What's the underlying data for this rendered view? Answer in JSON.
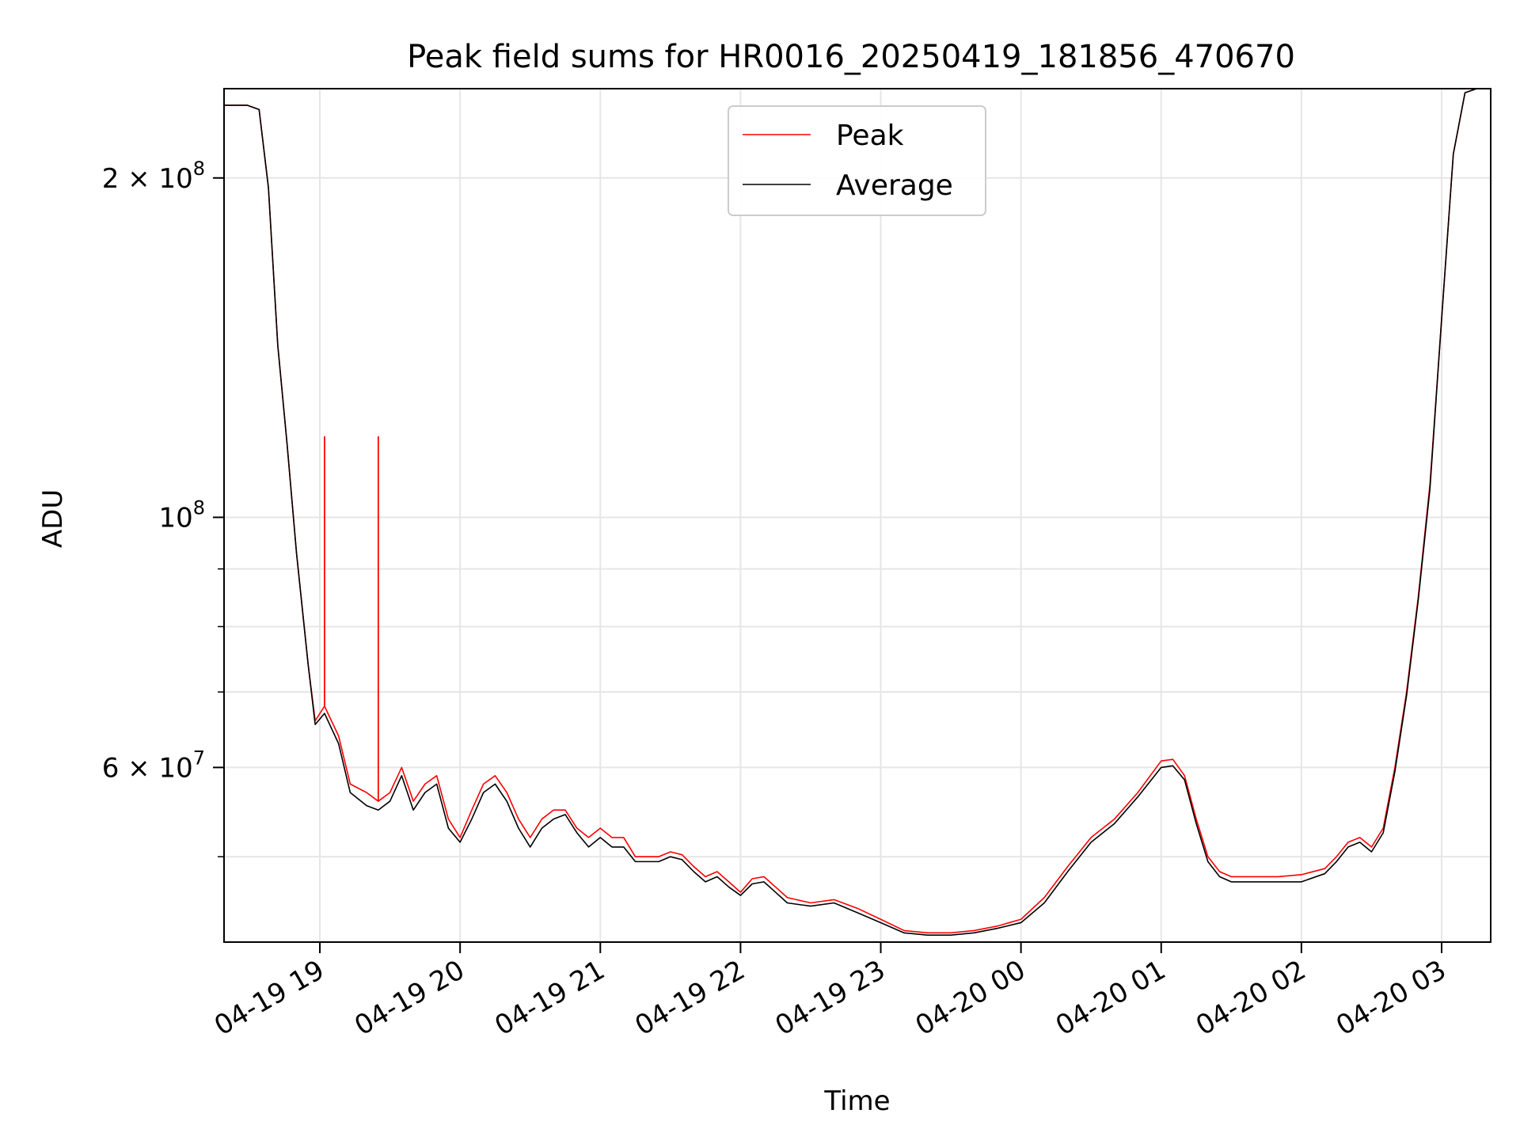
{
  "chart_data": {
    "type": "line",
    "title": "Peak field sums for HR0016_20250419_181856_470670",
    "xlabel": "Time",
    "ylabel": "ADU",
    "yscale": "log",
    "grid": true,
    "legend_placement": "upper-center",
    "xlim": [
      "2025-04-19 18:19",
      "2025-04-20 03:21"
    ],
    "ylim": [
      42000000,
      240000000
    ],
    "x_ticks": [
      {
        "value": "2025-04-19 19:00",
        "label": "04-19 19"
      },
      {
        "value": "2025-04-19 20:00",
        "label": "04-19 20"
      },
      {
        "value": "2025-04-19 21:00",
        "label": "04-19 21"
      },
      {
        "value": "2025-04-19 22:00",
        "label": "04-19 22"
      },
      {
        "value": "2025-04-19 23:00",
        "label": "04-19 23"
      },
      {
        "value": "2025-04-20 00:00",
        "label": "04-20 00"
      },
      {
        "value": "2025-04-20 01:00",
        "label": "04-20 01"
      },
      {
        "value": "2025-04-20 02:00",
        "label": "04-20 02"
      },
      {
        "value": "2025-04-20 03:00",
        "label": "04-20 03"
      }
    ],
    "y_major_ticks": [
      {
        "value": 200000000,
        "mantissa": "2",
        "times": "×",
        "base": "10",
        "exp": "8"
      },
      {
        "value": 100000000,
        "mantissa": "",
        "times": "",
        "base": "10",
        "exp": "8"
      },
      {
        "value": 60000000,
        "mantissa": "6",
        "times": "×",
        "base": "10",
        "exp": "7"
      }
    ],
    "y_minor_ticks": [
      50000000,
      70000000,
      80000000,
      90000000,
      300000000
    ],
    "series": [
      {
        "name": "Peak",
        "color": "#ff0000",
        "x": [
          "2025-04-19 18:19",
          "2025-04-19 18:29",
          "2025-04-19 18:34",
          "2025-04-19 18:38",
          "2025-04-19 18:42",
          "2025-04-19 18:46",
          "2025-04-19 18:50",
          "2025-04-19 18:55",
          "2025-04-19 18:58",
          "2025-04-19 19:02",
          "2025-04-19 19:08",
          "2025-04-19 19:13",
          "2025-04-19 19:20",
          "2025-04-19 19:25",
          "2025-04-19 19:30",
          "2025-04-19 19:35",
          "2025-04-19 19:40",
          "2025-04-19 19:45",
          "2025-04-19 19:50",
          "2025-04-19 19:55",
          "2025-04-19 20:00",
          "2025-04-19 20:05",
          "2025-04-19 20:10",
          "2025-04-19 20:15",
          "2025-04-19 20:20",
          "2025-04-19 20:25",
          "2025-04-19 20:30",
          "2025-04-19 20:35",
          "2025-04-19 20:40",
          "2025-04-19 20:45",
          "2025-04-19 20:50",
          "2025-04-19 20:55",
          "2025-04-19 21:00",
          "2025-04-19 21:05",
          "2025-04-19 21:10",
          "2025-04-19 21:15",
          "2025-04-19 21:20",
          "2025-04-19 21:25",
          "2025-04-19 21:30",
          "2025-04-19 21:35",
          "2025-04-19 21:40",
          "2025-04-19 21:45",
          "2025-04-19 21:50",
          "2025-04-19 21:55",
          "2025-04-19 22:00",
          "2025-04-19 22:05",
          "2025-04-19 22:10",
          "2025-04-19 22:15",
          "2025-04-19 22:20",
          "2025-04-19 22:30",
          "2025-04-19 22:40",
          "2025-04-19 22:50",
          "2025-04-19 23:00",
          "2025-04-19 23:10",
          "2025-04-19 23:20",
          "2025-04-19 23:30",
          "2025-04-19 23:40",
          "2025-04-19 23:50",
          "2025-04-20 00:00",
          "2025-04-20 00:10",
          "2025-04-20 00:20",
          "2025-04-20 00:30",
          "2025-04-20 00:40",
          "2025-04-20 00:50",
          "2025-04-20 01:00",
          "2025-04-20 01:05",
          "2025-04-20 01:10",
          "2025-04-20 01:15",
          "2025-04-20 01:20",
          "2025-04-20 01:25",
          "2025-04-20 01:30",
          "2025-04-20 01:40",
          "2025-04-20 01:50",
          "2025-04-20 02:00",
          "2025-04-20 02:10",
          "2025-04-20 02:15",
          "2025-04-20 02:20",
          "2025-04-20 02:25",
          "2025-04-20 02:30",
          "2025-04-20 02:35",
          "2025-04-20 02:40",
          "2025-04-20 02:45",
          "2025-04-20 02:50",
          "2025-04-20 02:55",
          "2025-04-20 03:00",
          "2025-04-20 03:05",
          "2025-04-20 03:10",
          "2025-04-20 03:15",
          "2025-04-20 03:18"
        ],
        "values": [
          232000000,
          232000000,
          230000000,
          196000000,
          142000000,
          116000000,
          93000000,
          74000000,
          66000000,
          68000000,
          64000000,
          58000000,
          57000000,
          56000000,
          57000000,
          60000000,
          56000000,
          58000000,
          59000000,
          54000000,
          52000000,
          55000000,
          58000000,
          59000000,
          57000000,
          54000000,
          52000000,
          54000000,
          55000000,
          55000000,
          53000000,
          52000000,
          53000000,
          52000000,
          52000000,
          50000000,
          50000000,
          50000000,
          50500000,
          50200000,
          49000000,
          48000000,
          48500000,
          47500000,
          46500000,
          47800000,
          48000000,
          47000000,
          46000000,
          45500000,
          45800000,
          45000000,
          44000000,
          43000000,
          42800000,
          42800000,
          43000000,
          43400000,
          44000000,
          46000000,
          49000000,
          52000000,
          54000000,
          57000000,
          60800000,
          61000000,
          59000000,
          54000000,
          50000000,
          48500000,
          48000000,
          48000000,
          48000000,
          48200000,
          48800000,
          50000000,
          51500000,
          52000000,
          51000000,
          53000000,
          60000000,
          70000000,
          85000000,
          107000000,
          150000000,
          210000000,
          238000000,
          240000000,
          240000000
        ]
      },
      {
        "name": "Average",
        "color": "#000000",
        "x": [
          "2025-04-19 18:19",
          "2025-04-19 18:29",
          "2025-04-19 18:34",
          "2025-04-19 18:38",
          "2025-04-19 18:42",
          "2025-04-19 18:46",
          "2025-04-19 18:50",
          "2025-04-19 18:55",
          "2025-04-19 18:58",
          "2025-04-19 19:02",
          "2025-04-19 19:08",
          "2025-04-19 19:13",
          "2025-04-19 19:20",
          "2025-04-19 19:25",
          "2025-04-19 19:30",
          "2025-04-19 19:35",
          "2025-04-19 19:40",
          "2025-04-19 19:45",
          "2025-04-19 19:50",
          "2025-04-19 19:55",
          "2025-04-19 20:00",
          "2025-04-19 20:05",
          "2025-04-19 20:10",
          "2025-04-19 20:15",
          "2025-04-19 20:20",
          "2025-04-19 20:25",
          "2025-04-19 20:30",
          "2025-04-19 20:35",
          "2025-04-19 20:40",
          "2025-04-19 20:45",
          "2025-04-19 20:50",
          "2025-04-19 20:55",
          "2025-04-19 21:00",
          "2025-04-19 21:05",
          "2025-04-19 21:10",
          "2025-04-19 21:15",
          "2025-04-19 21:20",
          "2025-04-19 21:25",
          "2025-04-19 21:30",
          "2025-04-19 21:35",
          "2025-04-19 21:40",
          "2025-04-19 21:45",
          "2025-04-19 21:50",
          "2025-04-19 21:55",
          "2025-04-19 22:00",
          "2025-04-19 22:05",
          "2025-04-19 22:10",
          "2025-04-19 22:15",
          "2025-04-19 22:20",
          "2025-04-19 22:30",
          "2025-04-19 22:40",
          "2025-04-19 22:50",
          "2025-04-19 23:00",
          "2025-04-19 23:10",
          "2025-04-19 23:20",
          "2025-04-19 23:30",
          "2025-04-19 23:40",
          "2025-04-19 23:50",
          "2025-04-20 00:00",
          "2025-04-20 00:10",
          "2025-04-20 00:20",
          "2025-04-20 00:30",
          "2025-04-20 00:40",
          "2025-04-20 00:50",
          "2025-04-20 01:00",
          "2025-04-20 01:05",
          "2025-04-20 01:10",
          "2025-04-20 01:15",
          "2025-04-20 01:20",
          "2025-04-20 01:25",
          "2025-04-20 01:30",
          "2025-04-20 01:40",
          "2025-04-20 01:50",
          "2025-04-20 02:00",
          "2025-04-20 02:10",
          "2025-04-20 02:15",
          "2025-04-20 02:20",
          "2025-04-20 02:25",
          "2025-04-20 02:30",
          "2025-04-20 02:35",
          "2025-04-20 02:40",
          "2025-04-20 02:45",
          "2025-04-20 02:50",
          "2025-04-20 02:55",
          "2025-04-20 03:00",
          "2025-04-20 03:05",
          "2025-04-20 03:10",
          "2025-04-20 03:15",
          "2025-04-20 03:18"
        ],
        "values": [
          232000000,
          232000000,
          230000000,
          196000000,
          142000000,
          116000000,
          93000000,
          74000000,
          65500000,
          67000000,
          63000000,
          57000000,
          55500000,
          55000000,
          56000000,
          59000000,
          55000000,
          57000000,
          58000000,
          53000000,
          51500000,
          54000000,
          57000000,
          58000000,
          56000000,
          53000000,
          51000000,
          53000000,
          54000000,
          54500000,
          52500000,
          51000000,
          52000000,
          51000000,
          51000000,
          49500000,
          49500000,
          49500000,
          50000000,
          49700000,
          48500000,
          47500000,
          48000000,
          47000000,
          46200000,
          47300000,
          47500000,
          46500000,
          45500000,
          45200000,
          45500000,
          44600000,
          43700000,
          42800000,
          42600000,
          42600000,
          42800000,
          43200000,
          43700000,
          45500000,
          48500000,
          51500000,
          53500000,
          56500000,
          60000000,
          60200000,
          58500000,
          53500000,
          49500000,
          48000000,
          47500000,
          47500000,
          47500000,
          47500000,
          48300000,
          49500000,
          51000000,
          51500000,
          50500000,
          52500000,
          59500000,
          69500000,
          84500000,
          106000000,
          150000000,
          210000000,
          238000000,
          240000000,
          240000000
        ]
      }
    ],
    "spikes": [
      {
        "series": "Peak",
        "x": "2025-04-19 19:02",
        "value": 118000000
      },
      {
        "series": "Peak",
        "x": "2025-04-19 19:25",
        "value": 118000000
      }
    ]
  }
}
